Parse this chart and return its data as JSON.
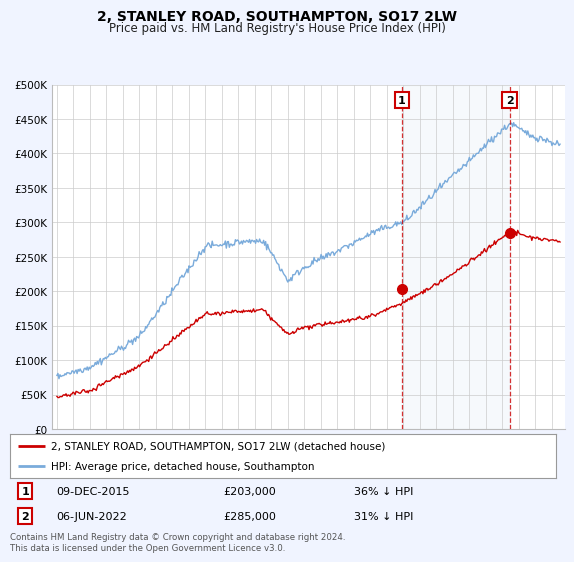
{
  "title": "2, STANLEY ROAD, SOUTHAMPTON, SO17 2LW",
  "subtitle": "Price paid vs. HM Land Registry's House Price Index (HPI)",
  "legend_label_red": "2, STANLEY ROAD, SOUTHAMPTON, SO17 2LW (detached house)",
  "legend_label_blue": "HPI: Average price, detached house, Southampton",
  "annotation1_label": "1",
  "annotation1_date": "09-DEC-2015",
  "annotation1_price": "£203,000",
  "annotation1_pct": "36% ↓ HPI",
  "annotation1_year": 2015.92,
  "annotation1_value": 203000,
  "annotation2_label": "2",
  "annotation2_date": "06-JUN-2022",
  "annotation2_price": "£285,000",
  "annotation2_pct": "31% ↓ HPI",
  "annotation2_year": 2022.44,
  "annotation2_value": 285000,
  "footer": "Contains HM Land Registry data © Crown copyright and database right 2024.\nThis data is licensed under the Open Government Licence v3.0.",
  "ylim": [
    0,
    500000
  ],
  "yticks": [
    0,
    50000,
    100000,
    150000,
    200000,
    250000,
    300000,
    350000,
    400000,
    450000,
    500000
  ],
  "ytick_labels": [
    "£0",
    "£50K",
    "£100K",
    "£150K",
    "£200K",
    "£250K",
    "£300K",
    "£350K",
    "£400K",
    "£450K",
    "£500K"
  ],
  "red_color": "#cc0000",
  "blue_color": "#7aabdb",
  "shade_color": "#dce8f5",
  "background_color": "#f0f4ff",
  "plot_bg_color": "#ffffff",
  "grid_color": "#cccccc"
}
